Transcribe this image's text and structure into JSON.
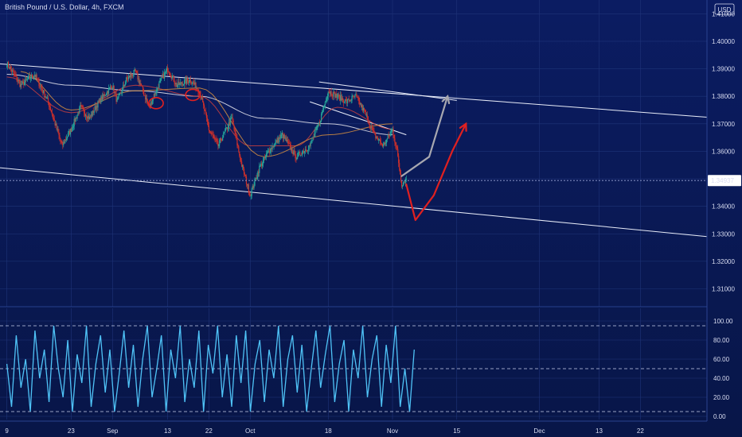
{
  "header": {
    "title": "British Pound / U.S. Dollar, 4h, FXCM",
    "currency": "USD"
  },
  "chart_data": [
    {
      "type": "candlestick",
      "title": "British Pound / U.S. Dollar, 4h, FXCM",
      "y_ticks": [
        "1.41000",
        "1.40000",
        "1.39000",
        "1.38000",
        "1.37000",
        "1.36000",
        "1.35000",
        "1.34000",
        "1.33000",
        "1.32000",
        "1.31000"
      ],
      "y_tick_values": [
        1.41,
        1.4,
        1.39,
        1.38,
        1.37,
        1.36,
        1.35,
        1.34,
        1.33,
        1.32,
        1.31
      ],
      "ylim": [
        1.3035,
        1.415
      ],
      "current_price_label": "1.34937",
      "current_price": 1.34937,
      "x_ticks": [
        "9",
        "23",
        "Sep",
        "13",
        "22",
        "Oct",
        "18",
        "Nov",
        "15",
        "Dec",
        "13",
        "22"
      ],
      "x_tick_days": [
        0,
        14,
        23,
        35,
        44,
        53,
        70,
        84,
        98,
        116,
        129,
        138
      ],
      "xlim": [
        -1.5,
        152.5
      ],
      "price_path": [
        [
          0,
          1.392
        ],
        [
          3,
          1.384
        ],
        [
          6,
          1.388
        ],
        [
          9,
          1.378
        ],
        [
          12,
          1.362
        ],
        [
          14,
          1.368
        ],
        [
          16,
          1.376
        ],
        [
          18,
          1.372
        ],
        [
          20,
          1.378
        ],
        [
          23,
          1.384
        ],
        [
          24,
          1.378
        ],
        [
          26,
          1.386
        ],
        [
          28,
          1.389
        ],
        [
          31,
          1.376
        ],
        [
          33,
          1.384
        ],
        [
          35,
          1.39
        ],
        [
          37,
          1.384
        ],
        [
          40,
          1.386
        ],
        [
          42,
          1.382
        ],
        [
          44,
          1.368
        ],
        [
          46,
          1.362
        ],
        [
          49,
          1.372
        ],
        [
          51,
          1.356
        ],
        [
          53,
          1.344
        ],
        [
          55,
          1.354
        ],
        [
          57,
          1.36
        ],
        [
          60,
          1.366
        ],
        [
          63,
          1.358
        ],
        [
          66,
          1.362
        ],
        [
          68,
          1.37
        ],
        [
          70,
          1.382
        ],
        [
          72,
          1.38
        ],
        [
          74,
          1.378
        ],
        [
          76,
          1.38
        ],
        [
          78,
          1.374
        ],
        [
          80,
          1.366
        ],
        [
          82,
          1.362
        ],
        [
          84,
          1.368
        ],
        [
          85,
          1.36
        ],
        [
          86,
          1.348
        ],
        [
          87,
          1.35
        ]
      ],
      "moving_averages": [
        {
          "color": "#e8e8f0",
          "points": [
            [
              0,
              1.388
            ],
            [
              14,
              1.384
            ],
            [
              28,
              1.382
            ],
            [
              42,
              1.38
            ],
            [
              56,
              1.372
            ],
            [
              70,
              1.37
            ],
            [
              84,
              1.366
            ]
          ]
        },
        {
          "color": "#c94040",
          "points": [
            [
              0,
              1.387
            ],
            [
              14,
              1.374
            ],
            [
              28,
              1.384
            ],
            [
              42,
              1.38
            ],
            [
              53,
              1.362
            ],
            [
              63,
              1.362
            ],
            [
              72,
              1.376
            ],
            [
              84,
              1.368
            ]
          ]
        },
        {
          "color": "#d89040",
          "points": [
            [
              3,
              1.389
            ],
            [
              14,
              1.375
            ],
            [
              28,
              1.382
            ],
            [
              42,
              1.383
            ],
            [
              56,
              1.358
            ],
            [
              70,
              1.366
            ],
            [
              84,
              1.37
            ]
          ]
        }
      ],
      "trendlines": [
        {
          "color": "#e8ecf8",
          "from": [
            -1.5,
            1.3918
          ],
          "to": [
            152.5,
            1.3724
          ]
        },
        {
          "color": "#e8ecf8",
          "from": [
            -1.5,
            1.354
          ],
          "to": [
            152.5,
            1.329
          ]
        },
        {
          "color": "#e8ecf8",
          "from": [
            68,
            1.3852
          ],
          "to": [
            98,
            1.3785
          ]
        },
        {
          "color": "#e8ecf8",
          "from": [
            66,
            1.378
          ],
          "to": [
            87,
            1.366
          ]
        }
      ],
      "projections": [
        {
          "color": "#a8a8b0",
          "points": [
            [
              86,
              1.351
            ],
            [
              92,
              1.358
            ],
            [
              96,
              1.38
            ]
          ]
        },
        {
          "color": "#e02020",
          "points": [
            [
              87,
              1.348
            ],
            [
              89,
              1.335
            ],
            [
              93,
              1.344
            ],
            [
              97,
              1.36
            ],
            [
              100,
              1.37
            ]
          ]
        }
      ],
      "highlight_ellipses": [
        {
          "color": "#e02020",
          "center": [
            32.5,
            1.3775
          ]
        },
        {
          "color": "#e02020",
          "center": [
            40.5,
            1.3805
          ]
        }
      ],
      "colors": {
        "up": "#26a69a",
        "down": "#d0302a",
        "wick": "#b8c0d8",
        "grid": "#1f3479"
      }
    },
    {
      "type": "line",
      "name": "oscillator",
      "y_ticks": [
        "100.00",
        "80.00",
        "60.00",
        "40.00",
        "20.00",
        "0.00"
      ],
      "y_tick_values": [
        100,
        80,
        60,
        40,
        20,
        0
      ],
      "ylim": [
        0,
        100
      ],
      "levels": [
        95,
        50,
        5
      ],
      "x": [
        0,
        1,
        2,
        3,
        4,
        5,
        6,
        7,
        8,
        9,
        10,
        11,
        12,
        13,
        14,
        15,
        16,
        17,
        18,
        19,
        20,
        21,
        22,
        23,
        24,
        25,
        26,
        27,
        28,
        29,
        30,
        31,
        32,
        33,
        34,
        35,
        36,
        37,
        38,
        39,
        40,
        41,
        42,
        43,
        44,
        45,
        46,
        47,
        48,
        49,
        50,
        51,
        52,
        53,
        54,
        55,
        56,
        57,
        58,
        59,
        60,
        61,
        62,
        63,
        64,
        65,
        66,
        67,
        68,
        69,
        70,
        71,
        72,
        73,
        74,
        75,
        76,
        77,
        78,
        79,
        80,
        81,
        82,
        83,
        84,
        85,
        86,
        87
      ],
      "values": [
        55,
        10,
        85,
        30,
        60,
        5,
        90,
        40,
        70,
        15,
        95,
        50,
        20,
        80,
        5,
        65,
        35,
        95,
        10,
        55,
        85,
        25,
        70,
        5,
        45,
        90,
        30,
        75,
        10,
        60,
        95,
        20,
        50,
        85,
        5,
        70,
        40,
        95,
        15,
        60,
        30,
        90,
        5,
        75,
        45,
        95,
        20,
        65,
        10,
        85,
        35,
        90,
        5,
        55,
        80,
        15,
        70,
        40,
        95,
        10,
        60,
        85,
        25,
        75,
        5,
        50,
        90,
        30,
        65,
        95,
        15,
        55,
        80,
        5,
        70,
        40,
        95,
        20,
        60,
        85,
        10,
        75,
        35,
        95,
        10,
        50,
        5,
        70
      ],
      "color": "#4fc3f7"
    }
  ]
}
